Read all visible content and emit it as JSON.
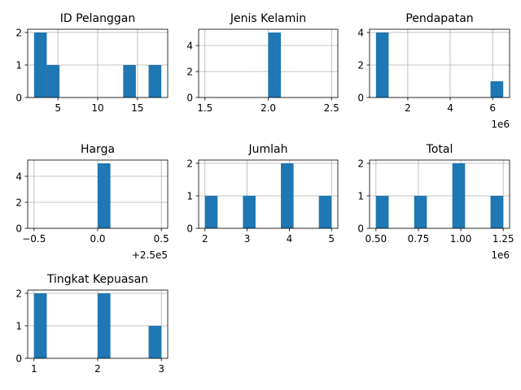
{
  "figure": {
    "background": "#ffffff",
    "bar_color": "#1f77b4",
    "grid_color": "#b0b0b0"
  },
  "chart_data": [
    {
      "type": "bar",
      "title": "ID Pelanggan",
      "bins": [
        [
          2.0,
          3.6,
          2
        ],
        [
          3.6,
          5.2,
          1
        ],
        [
          5.2,
          6.8,
          0
        ],
        [
          6.8,
          8.4,
          0
        ],
        [
          8.4,
          10.0,
          0
        ],
        [
          10.0,
          11.6,
          0
        ],
        [
          11.6,
          13.2,
          0
        ],
        [
          13.2,
          14.8,
          1
        ],
        [
          14.8,
          16.4,
          0
        ],
        [
          16.4,
          18.0,
          1
        ]
      ],
      "xlim": [
        1.2,
        18.8
      ],
      "ylim": [
        0,
        2.1
      ],
      "xticks": [
        5,
        10,
        15
      ],
      "xtick_labels": [
        "5",
        "10",
        "15"
      ],
      "yticks": [
        0,
        1,
        2
      ],
      "ytick_labels": [
        "0",
        "1",
        "2"
      ],
      "offset_label": "",
      "grid": true
    },
    {
      "type": "bar",
      "title": "Jenis Kelamin",
      "bins": [
        [
          1.5,
          1.6,
          0
        ],
        [
          1.6,
          1.7,
          0
        ],
        [
          1.7,
          1.8,
          0
        ],
        [
          1.8,
          1.9,
          0
        ],
        [
          1.9,
          2.0,
          0
        ],
        [
          2.0,
          2.1,
          5
        ],
        [
          2.1,
          2.2,
          0
        ],
        [
          2.2,
          2.3,
          0
        ],
        [
          2.3,
          2.4,
          0
        ],
        [
          2.4,
          2.5,
          0
        ]
      ],
      "xlim": [
        1.45,
        2.55
      ],
      "ylim": [
        0,
        5.25
      ],
      "xticks": [
        1.5,
        2.0,
        2.5
      ],
      "xtick_labels": [
        "1.5",
        "2.0",
        "2.5"
      ],
      "yticks": [
        0,
        2,
        4
      ],
      "ytick_labels": [
        "0",
        "2",
        "4"
      ],
      "offset_label": "",
      "grid": true
    },
    {
      "type": "bar",
      "title": "Pendapatan",
      "bins": [
        [
          0.5,
          1.1,
          4
        ],
        [
          1.1,
          1.7,
          0
        ],
        [
          1.7,
          2.3,
          0
        ],
        [
          2.3,
          2.9,
          0
        ],
        [
          2.9,
          3.5,
          0
        ],
        [
          3.5,
          4.1,
          0
        ],
        [
          4.1,
          4.7,
          0
        ],
        [
          4.7,
          5.3,
          0
        ],
        [
          5.3,
          5.9,
          0
        ],
        [
          5.9,
          6.5,
          1
        ]
      ],
      "xlim": [
        0.2,
        6.8
      ],
      "ylim": [
        0,
        4.2
      ],
      "xticks": [
        2,
        4,
        6
      ],
      "xtick_labels": [
        "2",
        "4",
        "6"
      ],
      "yticks": [
        0,
        2,
        4
      ],
      "ytick_labels": [
        "0",
        "2",
        "4"
      ],
      "offset_label": "1e6",
      "grid": true
    },
    {
      "type": "bar",
      "title": "Harga",
      "bins": [
        [
          -0.5,
          -0.4,
          0
        ],
        [
          -0.4,
          -0.3,
          0
        ],
        [
          -0.3,
          -0.2,
          0
        ],
        [
          -0.2,
          -0.1,
          0
        ],
        [
          -0.1,
          0.0,
          0
        ],
        [
          0.0,
          0.1,
          5
        ],
        [
          0.1,
          0.2,
          0
        ],
        [
          0.2,
          0.3,
          0
        ],
        [
          0.3,
          0.4,
          0
        ],
        [
          0.4,
          0.5,
          0
        ]
      ],
      "xlim": [
        -0.55,
        0.55
      ],
      "ylim": [
        0,
        5.25
      ],
      "xticks": [
        -0.5,
        0.0,
        0.5
      ],
      "xtick_labels": [
        "−0.5",
        "0.0",
        "0.5"
      ],
      "yticks": [
        0,
        2,
        4
      ],
      "ytick_labels": [
        "0",
        "2",
        "4"
      ],
      "offset_label": "+2.5e5",
      "grid": true
    },
    {
      "type": "bar",
      "title": "Jumlah",
      "bins": [
        [
          2.0,
          2.3,
          1
        ],
        [
          2.3,
          2.6,
          0
        ],
        [
          2.6,
          2.9,
          0
        ],
        [
          2.9,
          3.2,
          1
        ],
        [
          3.2,
          3.5,
          0
        ],
        [
          3.5,
          3.8,
          0
        ],
        [
          3.8,
          4.1,
          2
        ],
        [
          4.1,
          4.4,
          0
        ],
        [
          4.4,
          4.7,
          0
        ],
        [
          4.7,
          5.0,
          1
        ]
      ],
      "xlim": [
        1.85,
        5.15
      ],
      "ylim": [
        0,
        2.1
      ],
      "xticks": [
        2,
        3,
        4,
        5
      ],
      "xtick_labels": [
        "2",
        "3",
        "4",
        "5"
      ],
      "yticks": [
        0,
        1,
        2
      ],
      "ytick_labels": [
        "0",
        "1",
        "2"
      ],
      "offset_label": "",
      "grid": true
    },
    {
      "type": "bar",
      "title": "Total",
      "bins": [
        [
          0.5,
          0.575,
          1
        ],
        [
          0.575,
          0.65,
          0
        ],
        [
          0.65,
          0.725,
          0
        ],
        [
          0.725,
          0.8,
          1
        ],
        [
          0.8,
          0.875,
          0
        ],
        [
          0.875,
          0.95,
          0
        ],
        [
          0.95,
          1.025,
          2
        ],
        [
          1.025,
          1.1,
          0
        ],
        [
          1.1,
          1.175,
          0
        ],
        [
          1.175,
          1.25,
          1
        ]
      ],
      "xlim": [
        0.4625,
        1.2875
      ],
      "ylim": [
        0,
        2.1
      ],
      "xticks": [
        0.5,
        0.75,
        1.0,
        1.25
      ],
      "xtick_labels": [
        "0.50",
        "0.75",
        "1.00",
        "1.25"
      ],
      "yticks": [
        0,
        1,
        2
      ],
      "ytick_labels": [
        "0",
        "1",
        "2"
      ],
      "offset_label": "1e6",
      "grid": true
    },
    {
      "type": "bar",
      "title": "Tingkat Kepuasan",
      "bins": [
        [
          1.0,
          1.2,
          2
        ],
        [
          1.2,
          1.4,
          0
        ],
        [
          1.4,
          1.6,
          0
        ],
        [
          1.6,
          1.8,
          0
        ],
        [
          1.8,
          2.0,
          0
        ],
        [
          2.0,
          2.2,
          2
        ],
        [
          2.2,
          2.4,
          0
        ],
        [
          2.4,
          2.6,
          0
        ],
        [
          2.6,
          2.8,
          0
        ],
        [
          2.8,
          3.0,
          1
        ]
      ],
      "xlim": [
        0.9,
        3.1
      ],
      "ylim": [
        0,
        2.1
      ],
      "xticks": [
        1,
        2,
        3
      ],
      "xtick_labels": [
        "1",
        "2",
        "3"
      ],
      "yticks": [
        0,
        1,
        2
      ],
      "ytick_labels": [
        "0",
        "1",
        "2"
      ],
      "offset_label": "",
      "grid": true
    }
  ]
}
